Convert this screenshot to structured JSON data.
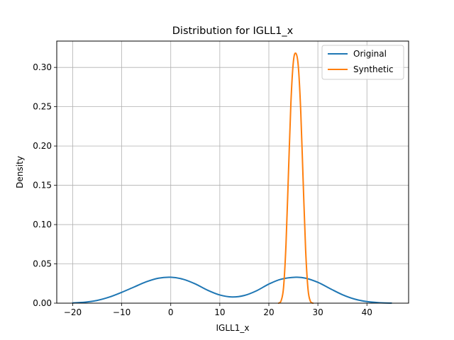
{
  "chart_data": {
    "type": "line",
    "title": "Distribution for IGLL1_x",
    "xlabel": "IGLL1_x",
    "ylabel": "Density",
    "xlim": [
      -23.25,
      48.5
    ],
    "ylim": [
      0.0,
      0.3335
    ],
    "xticks": [
      -20,
      -10,
      0,
      10,
      20,
      30,
      40
    ],
    "xtick_labels": [
      "−20",
      "−10",
      "0",
      "10",
      "20",
      "30",
      "40"
    ],
    "yticks": [
      0.0,
      0.05,
      0.1,
      0.15,
      0.2,
      0.25,
      0.3
    ],
    "ytick_labels": [
      "0.00",
      "0.05",
      "0.10",
      "0.15",
      "0.20",
      "0.25",
      "0.30"
    ],
    "grid": true,
    "legend_position": "top-right",
    "series": [
      {
        "name": "Original",
        "color": "#1f77b4",
        "x": [
          -20,
          -17.5,
          -15,
          -12.5,
          -10,
          -7.5,
          -5,
          -2.5,
          0,
          2.5,
          5,
          7.5,
          10,
          12.5,
          15,
          17.5,
          20,
          22.5,
          25.5,
          27.5,
          30,
          32.5,
          35,
          37.5,
          40,
          42.5,
          45
        ],
        "y": [
          0.0003,
          0.0012,
          0.0035,
          0.0078,
          0.0138,
          0.0205,
          0.0272,
          0.0318,
          0.033,
          0.0305,
          0.0245,
          0.0165,
          0.0104,
          0.0079,
          0.0098,
          0.0158,
          0.0243,
          0.0305,
          0.033,
          0.0318,
          0.0265,
          0.0185,
          0.0108,
          0.0052,
          0.002,
          0.0006,
          0.0001
        ]
      },
      {
        "name": "Synthetic",
        "color": "#ff7f0e",
        "x": [
          22.0,
          22.5,
          23.0,
          23.5,
          24.0,
          24.5,
          25.0,
          25.5,
          26.0,
          26.5,
          27.0,
          27.5,
          28.0,
          28.5,
          29.0
        ],
        "y": [
          0.0,
          0.003,
          0.02,
          0.075,
          0.165,
          0.255,
          0.307,
          0.318,
          0.302,
          0.245,
          0.155,
          0.068,
          0.017,
          0.002,
          0.0
        ]
      }
    ]
  }
}
